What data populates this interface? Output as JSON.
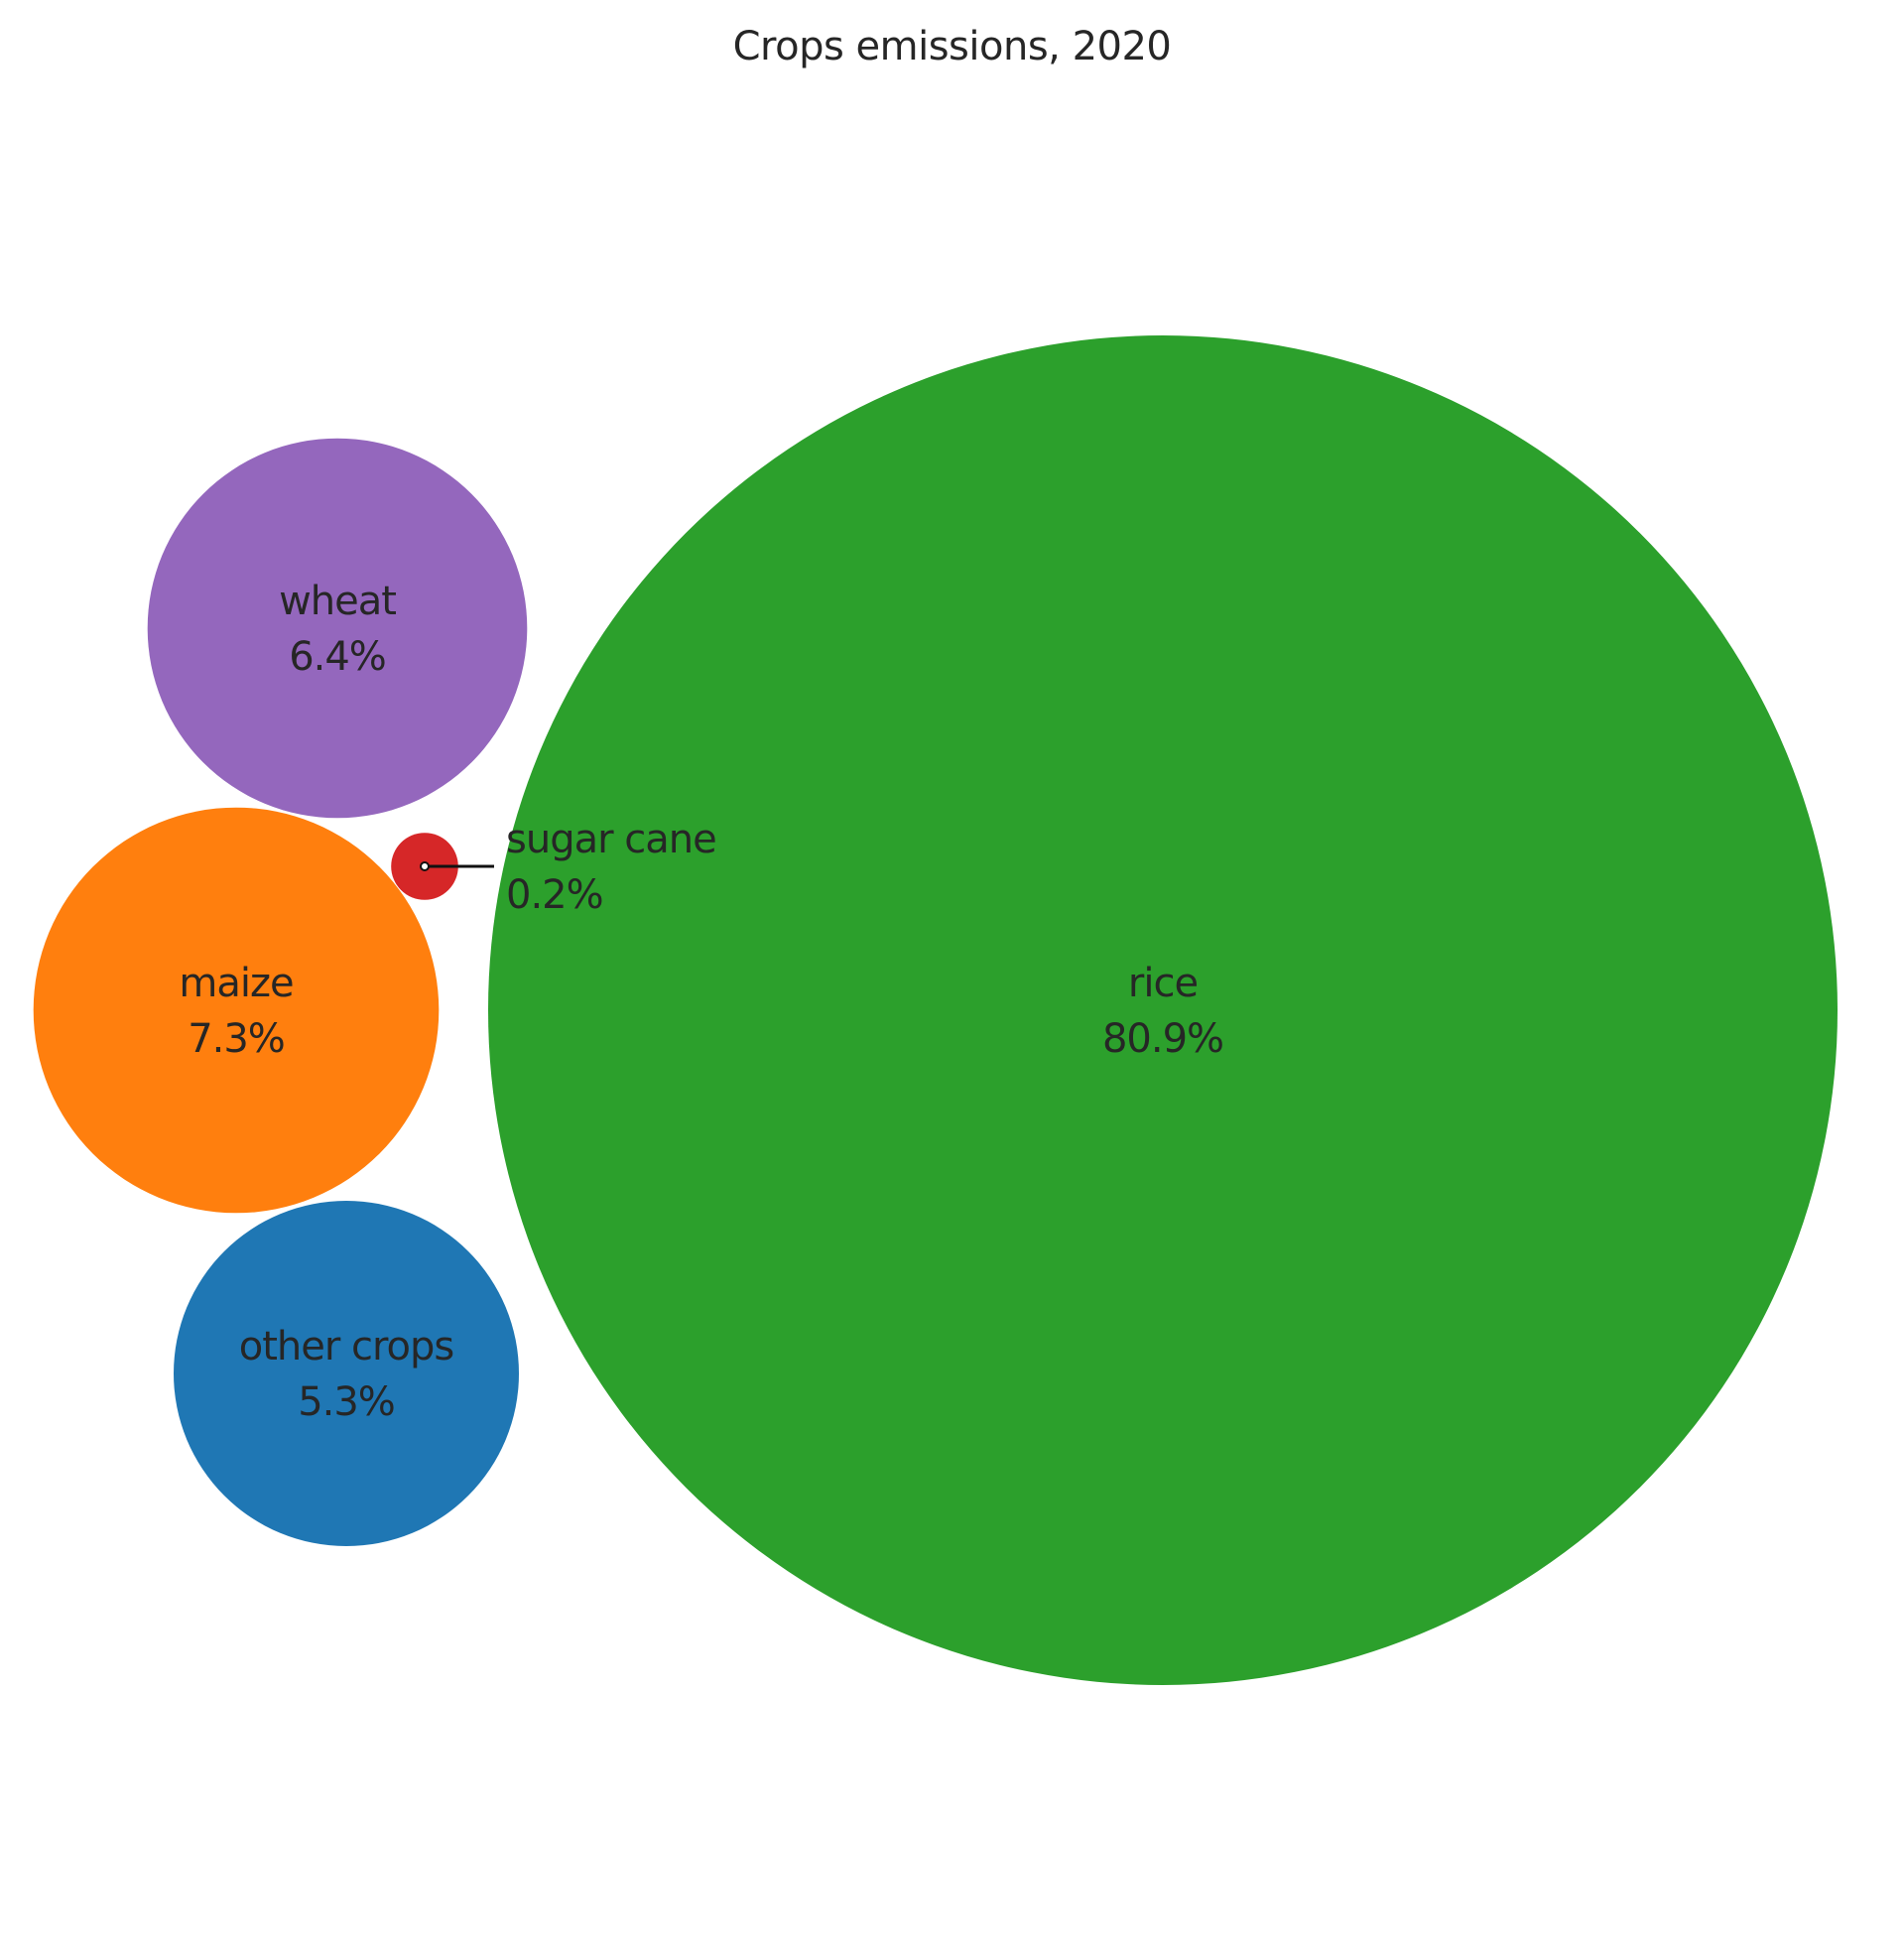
{
  "chart_data": {
    "type": "bubble",
    "title": "Crops emissions, 2020",
    "grid": false,
    "legend": "none",
    "series": [
      {
        "name": "rice",
        "value": 80.9,
        "label": "80.9%",
        "color": "#2ca02c"
      },
      {
        "name": "maize",
        "value": 7.3,
        "label": "7.3%",
        "color": "#ff7f0e"
      },
      {
        "name": "wheat",
        "value": 6.4,
        "label": "6.4%",
        "color": "#9467bd"
      },
      {
        "name": "other crops",
        "value": 5.3,
        "label": "5.3%",
        "color": "#1f77b4"
      },
      {
        "name": "sugar cane",
        "value": 0.2,
        "label": "0.2%",
        "color": "#d62728"
      }
    ]
  }
}
